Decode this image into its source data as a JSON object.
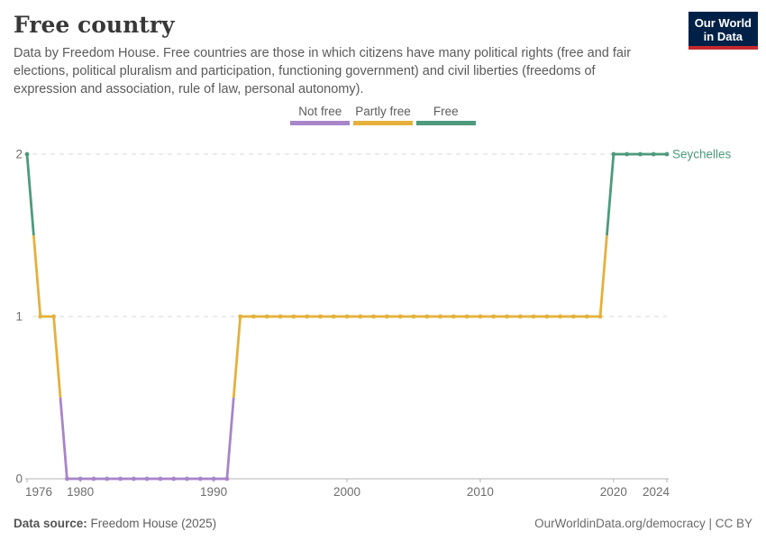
{
  "header": {
    "title": "Free country",
    "subtitle_lines": [
      "Data by Freedom House. Free countries are those in which citizens have many political rights (free and fair",
      "elections, political pluralism and participation, functioning government) and civil liberties (freedoms of",
      "expression and association, rule of law, personal autonomy)."
    ],
    "logo": {
      "line1": "Our World",
      "line2": "in Data",
      "bg_color": "#002147",
      "accent_color": "#C4282D"
    }
  },
  "legend": {
    "items": [
      {
        "label": "Not free",
        "value": 0,
        "color": "#A885C9"
      },
      {
        "label": "Partly free",
        "value": 1,
        "color": "#E5B13C"
      },
      {
        "label": "Free",
        "value": 2,
        "color": "#4D9A7C"
      }
    ]
  },
  "chart_data": {
    "type": "line",
    "title": "Free country",
    "series_label": "Seychelles",
    "value_labels": {
      "0": "Not free",
      "1": "Partly free",
      "2": "Free"
    },
    "colors_by_value": [
      "#A885C9",
      "#E5B13C",
      "#4D9A7C"
    ],
    "years": [
      1976,
      1977,
      1978,
      1979,
      1980,
      1981,
      1982,
      1983,
      1984,
      1985,
      1986,
      1987,
      1988,
      1989,
      1990,
      1991,
      1992,
      1993,
      1994,
      1995,
      1996,
      1997,
      1998,
      1999,
      2000,
      2001,
      2002,
      2003,
      2004,
      2005,
      2006,
      2007,
      2008,
      2009,
      2010,
      2011,
      2012,
      2013,
      2014,
      2015,
      2016,
      2017,
      2018,
      2019,
      2020,
      2021,
      2022,
      2023,
      2024
    ],
    "values": [
      2,
      1,
      1,
      0,
      0,
      0,
      0,
      0,
      0,
      0,
      0,
      0,
      0,
      0,
      0,
      0,
      1,
      1,
      1,
      1,
      1,
      1,
      1,
      1,
      1,
      1,
      1,
      1,
      1,
      1,
      1,
      1,
      1,
      1,
      1,
      1,
      1,
      1,
      1,
      1,
      1,
      1,
      1,
      1,
      2,
      2,
      2,
      2,
      2
    ],
    "xlim": [
      1976,
      2024
    ],
    "ylim": [
      0,
      2
    ],
    "x_ticks": [
      1976,
      1980,
      1990,
      2000,
      2010,
      2020,
      2024
    ],
    "y_ticks": [
      0,
      1,
      2
    ],
    "grid": "horizontal-dashed",
    "legend_position": "top-center",
    "gridline_color": "#dadada",
    "axis_color": "#b3b3b3",
    "tick_label_color": "#6e6e6e"
  },
  "footer": {
    "source_label": "Data source:",
    "source_value": " Freedom House (2025)",
    "note_link": "OurWorldinData.org/democracy",
    "note_license": " | CC BY"
  }
}
